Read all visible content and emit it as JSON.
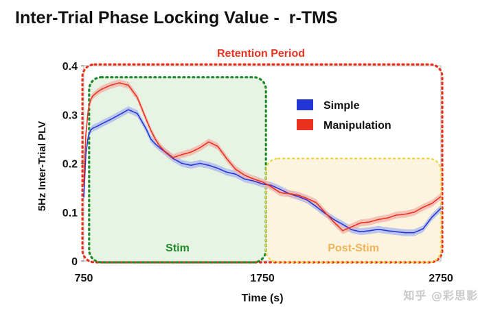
{
  "chart_data": {
    "type": "line",
    "title": "Inter-Trial Phase Locking Value -  r-TMS",
    "xlabel": "Time (s)",
    "ylabel": "5Hz Inter-Trial PLV",
    "xlim": [
      750,
      2750
    ],
    "ylim": [
      0,
      0.4
    ],
    "x_ticks": [
      "750",
      "1750",
      "2750"
    ],
    "y_ticks": [
      "0",
      "0.1",
      "0.2",
      "0.3",
      "0.4"
    ],
    "legend_position": "top-right",
    "series": [
      {
        "name": "Simple",
        "color": "#2437d6",
        "band_color": "#a9b6f0",
        "x": [
          750,
          762,
          775,
          788,
          800,
          825,
          850,
          900,
          950,
          1000,
          1050,
          1100,
          1125,
          1150,
          1175,
          1200,
          1250,
          1300,
          1350,
          1400,
          1450,
          1500,
          1550,
          1600,
          1650,
          1700,
          1750,
          1800,
          1850,
          1900,
          1950,
          2000,
          2050,
          2100,
          2150,
          2200,
          2250,
          2300,
          2350,
          2400,
          2450,
          2500,
          2550,
          2600,
          2650,
          2700,
          2750
        ],
        "values": [
          0.13,
          0.22,
          0.255,
          0.268,
          0.272,
          0.276,
          0.281,
          0.29,
          0.3,
          0.31,
          0.302,
          0.27,
          0.25,
          0.24,
          0.232,
          0.225,
          0.21,
          0.2,
          0.196,
          0.2,
          0.196,
          0.19,
          0.182,
          0.178,
          0.168,
          0.164,
          0.158,
          0.155,
          0.147,
          0.138,
          0.132,
          0.125,
          0.112,
          0.098,
          0.085,
          0.075,
          0.064,
          0.06,
          0.062,
          0.065,
          0.062,
          0.06,
          0.058,
          0.058,
          0.066,
          0.09,
          0.108
        ]
      },
      {
        "name": "Manipulation",
        "color": "#e8321e",
        "band_color": "#f3b2aa",
        "x": [
          750,
          762,
          775,
          788,
          800,
          825,
          850,
          900,
          950,
          1000,
          1050,
          1100,
          1125,
          1150,
          1175,
          1200,
          1250,
          1300,
          1350,
          1400,
          1450,
          1500,
          1550,
          1600,
          1650,
          1700,
          1750,
          1800,
          1850,
          1900,
          1950,
          2000,
          2050,
          2100,
          2150,
          2200,
          2250,
          2300,
          2350,
          2400,
          2450,
          2500,
          2550,
          2600,
          2650,
          2700,
          2750
        ],
        "values": [
          0.155,
          0.26,
          0.31,
          0.33,
          0.338,
          0.346,
          0.352,
          0.36,
          0.365,
          0.36,
          0.335,
          0.29,
          0.268,
          0.25,
          0.236,
          0.226,
          0.212,
          0.218,
          0.223,
          0.232,
          0.244,
          0.235,
          0.21,
          0.188,
          0.176,
          0.168,
          0.162,
          0.152,
          0.14,
          0.138,
          0.135,
          0.128,
          0.12,
          0.1,
          0.08,
          0.062,
          0.07,
          0.078,
          0.08,
          0.085,
          0.088,
          0.094,
          0.096,
          0.1,
          0.11,
          0.118,
          0.132
        ]
      }
    ],
    "regions": [
      {
        "label": "Retention Period",
        "x": [
          750,
          2750
        ],
        "y": [
          0,
          0.4
        ],
        "color": "#e8321e",
        "fill": "none"
      },
      {
        "label": "Stim",
        "x": [
          780,
          1770
        ],
        "y": [
          0,
          0.385
        ],
        "color": "#1f8a2a",
        "fill": "#e6f3e2"
      },
      {
        "label": "Post-Stim",
        "x": [
          1770,
          2750
        ],
        "y": [
          0,
          0.21
        ],
        "color": "#f2d340",
        "fill": "#fcf3dc"
      }
    ]
  },
  "watermark": "知乎 @彩思影"
}
